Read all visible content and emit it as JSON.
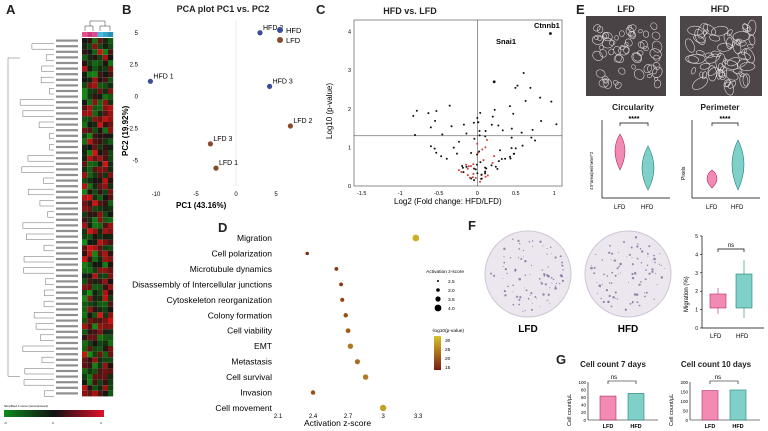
{
  "panel_letters": [
    "A",
    "B",
    "C",
    "D",
    "E",
    "F",
    "G"
  ],
  "heatmap": {
    "legend_title": "Simplified z-score (zerocentered)",
    "legend_ticks": [
      "-3",
      "0",
      "3"
    ],
    "n_rows": 64,
    "n_cols": 6
  },
  "pca": {
    "title": "PCA plot PC1 vs. PC2",
    "legend": [
      {
        "label": "HFD",
        "color": "#3b4d99"
      },
      {
        "label": "LFD",
        "color": "#8b4a2c"
      }
    ],
    "xlabel": "PC1 (43.16%)",
    "ylabel": "PC2 (19.92%)",
    "xticks": [
      "-10",
      "-5",
      "0",
      "5"
    ],
    "yticks": [
      "5",
      "2.5",
      "0",
      "-2.5",
      "-5"
    ],
    "points": [
      {
        "label": "HFD 1",
        "group": "HFD",
        "x": -10.7,
        "y": 1.2
      },
      {
        "label": "HFD 2",
        "group": "HFD",
        "x": 3.0,
        "y": 5.0
      },
      {
        "label": "HFD 3",
        "group": "HFD",
        "x": 4.2,
        "y": 0.8
      },
      {
        "label": "LFD 2",
        "group": "LFD",
        "x": 6.8,
        "y": -2.3
      },
      {
        "label": "LFD 3",
        "group": "LFD",
        "x": -3.2,
        "y": -3.7
      },
      {
        "label": "LFD 1",
        "group": "LFD",
        "x": -2.5,
        "y": -5.6
      }
    ]
  },
  "volcano": {
    "title": "HFD vs. LFD",
    "xlabel": "Log2 (Fold change: HFD/LFD)",
    "ylabel": "Log10 (p-value)",
    "xticks": [
      "-1.5",
      "-1",
      "-0.5",
      "0",
      "0.5",
      "1"
    ],
    "yticks": [
      "4",
      "3",
      "2",
      "1",
      "0"
    ],
    "labels": [
      "Snai1",
      "Ctnnb1"
    ],
    "threshold_y": 1.3
  },
  "dotplot": {
    "xlabel": "Activation z-score",
    "xticks": [
      "2.1",
      "2.4",
      "2.7",
      "3",
      "3.3"
    ],
    "size_legend_title": "Activation z-score",
    "size_legend": [
      "2.5",
      "3.0",
      "3.5",
      "4.0"
    ],
    "color_legend_title": "-log10(p-value)",
    "color_legend_ticks": [
      "30",
      "25",
      "20",
      "15"
    ],
    "terms": [
      {
        "label": "Migration",
        "z": 3.28,
        "p": 32
      },
      {
        "label": "Cell polarization",
        "z": 2.35,
        "p": 12
      },
      {
        "label": "Microtubule dynamics",
        "z": 2.6,
        "p": 14
      },
      {
        "label": "Disassembly of Intercellular junctions",
        "z": 2.64,
        "p": 14
      },
      {
        "label": "Cytoskeleton reorganization",
        "z": 2.65,
        "p": 16
      },
      {
        "label": "Colony formation",
        "z": 2.68,
        "p": 18
      },
      {
        "label": "Cell viability",
        "z": 2.7,
        "p": 20
      },
      {
        "label": "EMT",
        "z": 2.72,
        "p": 24
      },
      {
        "label": "Metastasis",
        "z": 2.78,
        "p": 22
      },
      {
        "label": "Cell survival",
        "z": 2.85,
        "p": 24
      },
      {
        "label": "Invasion",
        "z": 2.4,
        "p": 18
      },
      {
        "label": "Cell movement",
        "z": 3.0,
        "p": 30
      }
    ]
  },
  "panelE": {
    "image_labels": [
      "LFD",
      "HFD"
    ],
    "circularity": {
      "title": "Circularity",
      "ylabel": "4π*area/perimeter^2",
      "sig": "****",
      "groups": [
        "LFD",
        "HFD"
      ]
    },
    "perimeter": {
      "title": "Perimeter",
      "ylabel": "Pixels",
      "sig": "****",
      "groups": [
        "LFD",
        "HFD"
      ]
    }
  },
  "panelF": {
    "image_labels": [
      "LFD",
      "HFD"
    ],
    "migration": {
      "ylabel": "Migration (%)",
      "sig": "ns",
      "yticks": [
        "5",
        "4",
        "3",
        "2",
        "1",
        "0"
      ],
      "groups": [
        "LFD",
        "HFD"
      ]
    }
  },
  "panelG": {
    "chart7": {
      "title": "Cell count 7 days",
      "ylabel": "Cell count/µL",
      "sig": "ns",
      "yticks": [
        "100",
        "80",
        "60",
        "40",
        "20",
        "0"
      ],
      "groups": [
        "LFD",
        "HFD"
      ]
    },
    "chart10": {
      "title": "Cell count 10 days",
      "ylabel": "Cell count/µL",
      "sig": "ns",
      "yticks": [
        "200",
        "150",
        "100",
        "50",
        "0"
      ],
      "groups": [
        "LFD",
        "HFD"
      ]
    }
  },
  "chart_data": [
    {
      "type": "scatter",
      "title": "PCA plot PC1 vs. PC2",
      "xlabel": "PC1 (43.16%)",
      "ylabel": "PC2 (19.92%)",
      "xlim": [
        -12,
        9
      ],
      "ylim": [
        -7,
        6
      ],
      "series": [
        {
          "name": "HFD",
          "x": [
            -10.7,
            3.0,
            4.2
          ],
          "y": [
            1.2,
            5.0,
            0.8
          ]
        },
        {
          "name": "LFD",
          "x": [
            6.8,
            -3.2,
            -2.5
          ],
          "y": [
            -2.3,
            -3.7,
            -5.6
          ]
        }
      ]
    },
    {
      "type": "scatter",
      "title": "HFD vs. LFD",
      "xlabel": "Log2 (Fold change: HFD/LFD)",
      "ylabel": "Log10 (p-value)",
      "xlim": [
        -1.6,
        1.1
      ],
      "ylim": [
        0,
        4.3
      ]
    },
    {
      "type": "scatter",
      "xlabel": "Activation z-score",
      "xlim": [
        2.1,
        3.35
      ]
    },
    {
      "type": "bar",
      "title": "Cell count 7 days",
      "categories": [
        "LFD",
        "HFD"
      ],
      "values": [
        63,
        70
      ],
      "ylim": [
        0,
        100
      ]
    },
    {
      "type": "bar",
      "title": "Cell count 10 days",
      "categories": [
        "LFD",
        "HFD"
      ],
      "values": [
        155,
        158
      ],
      "ylim": [
        0,
        200
      ]
    }
  ]
}
